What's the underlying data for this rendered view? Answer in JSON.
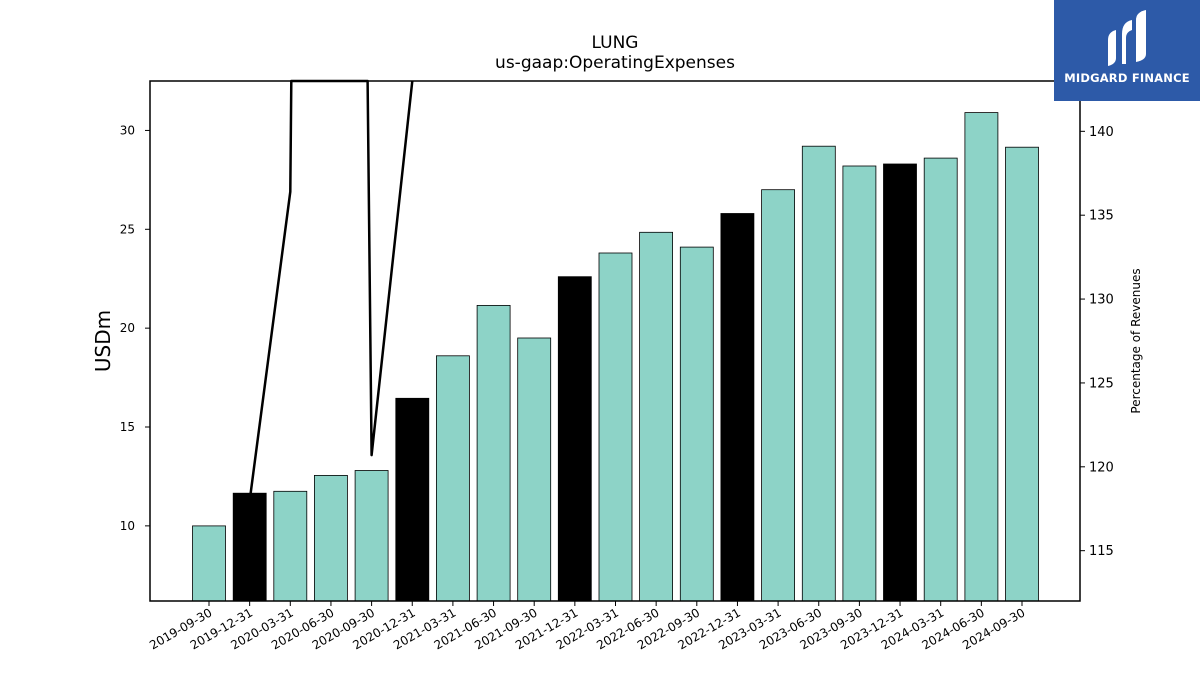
{
  "chart_data": {
    "type": "bar",
    "title": "LUNG",
    "subtitle": "us-gaap:OperatingExpenses",
    "ylabel": "USDm",
    "ylabel_right": "Percentage of Revenues",
    "categories": [
      "2019-09-30",
      "2019-12-31",
      "2020-03-31",
      "2020-06-30",
      "2020-09-30",
      "2020-12-31",
      "2021-03-31",
      "2021-06-30",
      "2021-09-30",
      "2021-12-31",
      "2022-03-31",
      "2022-06-30",
      "2022-09-30",
      "2022-12-31",
      "2023-03-31",
      "2023-06-30",
      "2023-09-30",
      "2023-12-31",
      "2024-03-31",
      "2024-06-30",
      "2024-09-30"
    ],
    "values": [
      10.0,
      11.65,
      11.75,
      12.55,
      12.8,
      16.45,
      18.6,
      21.15,
      19.5,
      22.6,
      23.8,
      24.85,
      24.1,
      25.8,
      27.0,
      29.2,
      28.2,
      28.3,
      28.6,
      30.9,
      29.15
    ],
    "bar_colors": [
      "#8dd3c7",
      "#000000",
      "#8dd3c7",
      "#8dd3c7",
      "#8dd3c7",
      "#000000",
      "#8dd3c7",
      "#8dd3c7",
      "#8dd3c7",
      "#000000",
      "#8dd3c7",
      "#8dd3c7",
      "#8dd3c7",
      "#000000",
      "#8dd3c7",
      "#8dd3c7",
      "#8dd3c7",
      "#000000",
      "#8dd3c7",
      "#8dd3c7",
      "#8dd3c7"
    ],
    "ylim": [
      6.2,
      32.5
    ],
    "yticks": [
      10,
      15,
      20,
      25,
      30
    ],
    "ylim_right": [
      112,
      143
    ],
    "yticks_right": [
      115,
      120,
      125,
      130,
      135,
      140
    ],
    "line_series": {
      "name": "",
      "axis": "right",
      "color": "#000000",
      "points": [
        {
          "x": "2019-12-31",
          "y": 118.0
        },
        {
          "x": "2020-03-31",
          "y": 136.4
        },
        {
          "x": "2020-03-31",
          "y": 143.0
        },
        {
          "x": "2020-09-30",
          "y": 143.0
        },
        {
          "x": "2020-09-30",
          "y": 120.7
        },
        {
          "x": "2020-12-31",
          "y": 143.0
        }
      ]
    }
  },
  "logo": {
    "text": "MIDGARD FINANCE",
    "background": "#2d5aa8"
  }
}
